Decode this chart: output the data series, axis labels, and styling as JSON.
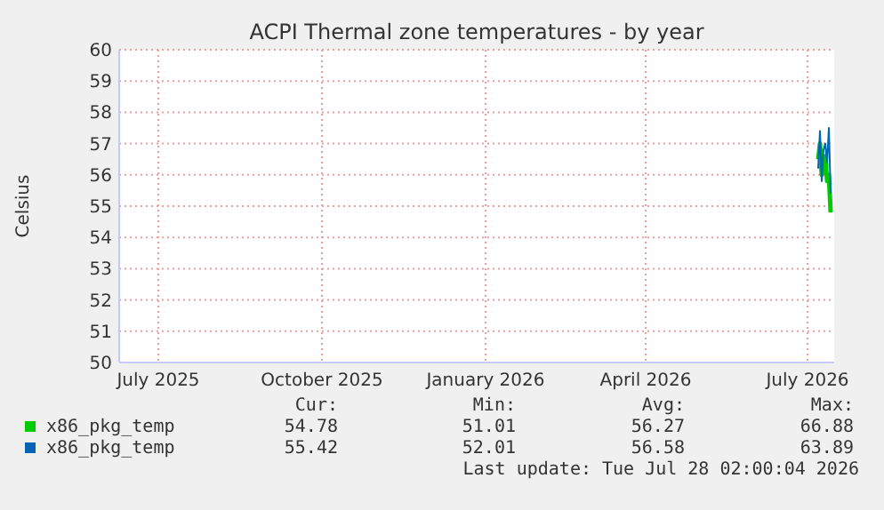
{
  "chart_data": {
    "type": "line",
    "title": "ACPI Thermal zone temperatures - by year",
    "ylabel": "Celsius",
    "xlim": [
      "2025-06-23",
      "2026-07-30"
    ],
    "xticks": [
      {
        "value": "2025-07-15",
        "label": "July 2025"
      },
      {
        "value": "2025-10-15",
        "label": "October 2025"
      },
      {
        "value": "2026-01-15",
        "label": "January 2026"
      },
      {
        "value": "2026-04-15",
        "label": "April 2026"
      },
      {
        "value": "2026-07-15",
        "label": "July 2026"
      }
    ],
    "ylim": [
      50,
      60
    ],
    "yticks": [
      50,
      51,
      52,
      53,
      54,
      55,
      56,
      57,
      58,
      59,
      60
    ],
    "grid": true,
    "legend": "bottom",
    "series": [
      {
        "name": "x86_pkg_temp",
        "color": "#00cc00",
        "x": [
          "2026-07-21",
          "2026-07-22",
          "2026-07-23",
          "2026-07-24",
          "2026-07-25",
          "2026-07-26",
          "2026-07-27",
          "2026-07-28"
        ],
        "values": [
          56.5,
          57.0,
          56.0,
          56.2,
          56.6,
          55.8,
          56.0,
          54.8
        ]
      },
      {
        "name": "x86_pkg_temp",
        "color": "#0066b3",
        "x": [
          "2026-07-21",
          "2026-07-22",
          "2026-07-23",
          "2026-07-24",
          "2026-07-25",
          "2026-07-26",
          "2026-07-27",
          "2026-07-28"
        ],
        "values": [
          56.2,
          57.4,
          55.8,
          56.8,
          57.0,
          56.4,
          57.5,
          55.4
        ]
      }
    ],
    "annotations": [
      "Cur:",
      "Min:",
      "Avg:",
      "Max:",
      "54.78",
      "51.01",
      "56.27",
      "66.88",
      "55.42",
      "52.01",
      "56.58",
      "63.89",
      "Last update: Tue Jul 28 02:00:04 2026"
    ]
  }
}
